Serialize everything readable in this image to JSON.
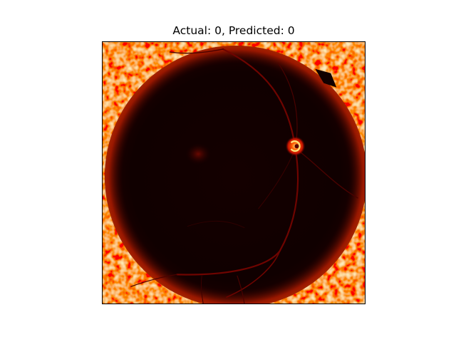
{
  "figure": {
    "title": "Actual: 0, Predicted: 0",
    "image": {
      "subject": "retinal-fundus-heatmap",
      "colormap": "hot",
      "colors": {
        "background_dark": "#120000",
        "rim_red": "#e01a00",
        "rim_orange": "#ff6a00",
        "rim_yellow": "#ffd43a",
        "vessel": "#6e0400",
        "optic_disc": "#ff3a00"
      }
    }
  }
}
